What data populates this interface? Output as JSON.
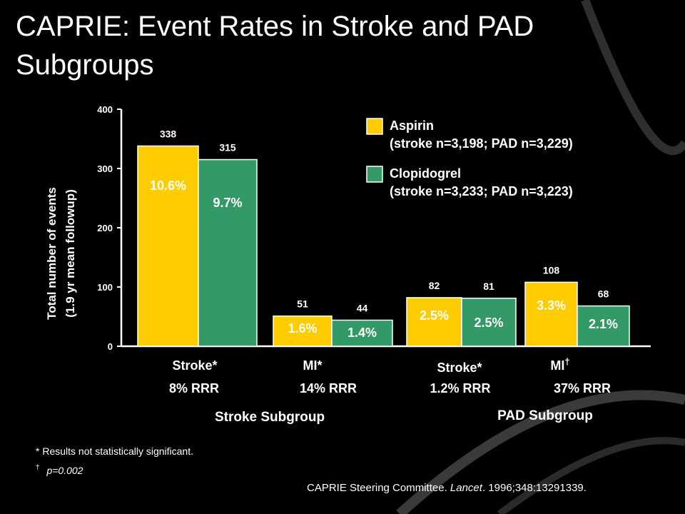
{
  "slide": {
    "title": "CAPRIE: Event Rates in Stroke and PAD Subgroups",
    "footnote_star": "* Results not statistically significant.",
    "footnote_dagger_symbol": "†",
    "footnote_dagger_text": "p=0.002",
    "citation_prefix": "CAPRIE Steering Committee. ",
    "citation_journal": "Lancet",
    "citation_suffix": ". 1996;348:13291339."
  },
  "chart_data": {
    "type": "bar",
    "ylabel_line1": "Total number of events",
    "ylabel_line2": "(1.9 yr mean followup)",
    "ylim": [
      0,
      400
    ],
    "yticks": [
      0,
      100,
      200,
      300,
      400
    ],
    "grid": false,
    "legend_position": "top-right",
    "series": [
      {
        "name": "Aspirin",
        "name_detail": "(stroke n=3,198; PAD n=3,229)",
        "color": "#FFCC00",
        "values": [
          338,
          51,
          82,
          108
        ],
        "percent_labels": [
          "10.6%",
          "1.6%",
          "2.5%",
          "3.3%"
        ]
      },
      {
        "name": "Clopidogrel",
        "name_detail": "(stroke n=3,233; PAD n=3,223)",
        "color": "#339966",
        "values": [
          315,
          44,
          81,
          68
        ],
        "percent_labels": [
          "9.7%",
          "1.4%",
          "2.5%",
          "2.1%"
        ]
      }
    ],
    "categories": [
      {
        "label": "Stroke*",
        "rrr": "8% RRR"
      },
      {
        "label": "MI*",
        "rrr": "14% RRR"
      },
      {
        "label": "Stroke*",
        "rrr": "1.2% RRR"
      },
      {
        "label": "MI",
        "label_mark": "†",
        "rrr": "37% RRR"
      }
    ],
    "groups": [
      {
        "label": "Stroke Subgroup"
      },
      {
        "label": "PAD Subgroup"
      }
    ]
  }
}
